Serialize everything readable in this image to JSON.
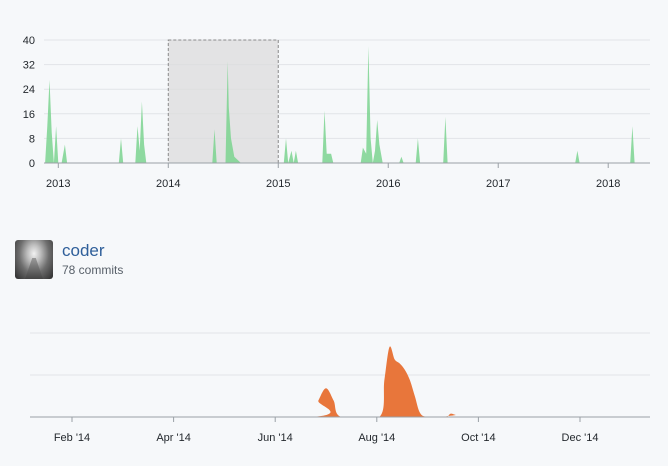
{
  "overview": {
    "chart_data": {
      "type": "area",
      "y_ticks": [
        "0",
        "8",
        "16",
        "24",
        "32",
        "40"
      ],
      "x_ticks": [
        "2013",
        "2014",
        "2015",
        "2016",
        "2017",
        "2018"
      ],
      "ylim": [
        0,
        40
      ],
      "xlim": [
        2012.87,
        2018.38
      ],
      "selection": [
        2014.0,
        2015.0
      ],
      "color": "#7bd38f",
      "x": [
        2012.88,
        2012.9,
        2012.92,
        2012.94,
        2012.96,
        2012.98,
        2013.0,
        2013.03,
        2013.06,
        2013.08,
        2013.1,
        2013.18,
        2013.2,
        2013.22,
        2013.55,
        2013.57,
        2013.59,
        2013.7,
        2013.72,
        2013.74,
        2013.76,
        2013.78,
        2013.8,
        2014.4,
        2014.42,
        2014.44,
        2014.52,
        2014.54,
        2014.55,
        2014.57,
        2014.6,
        2014.63,
        2014.66,
        2015.05,
        2015.07,
        2015.09,
        2015.12,
        2015.14,
        2015.16,
        2015.18,
        2015.2,
        2015.22,
        2015.4,
        2015.42,
        2015.44,
        2015.48,
        2015.5,
        2015.52,
        2015.75,
        2015.77,
        2015.8,
        2015.82,
        2015.84,
        2015.86,
        2015.88,
        2015.9,
        2015.92,
        2015.95,
        2016.1,
        2016.12,
        2016.14,
        2016.25,
        2016.27,
        2016.29,
        2016.5,
        2016.52,
        2016.54,
        2017.7,
        2017.72,
        2017.74,
        2018.2,
        2018.22,
        2018.24,
        2018.36
      ],
      "y": [
        0,
        12,
        27,
        10,
        0,
        12,
        0,
        0,
        6,
        0,
        0,
        0,
        0,
        0,
        0,
        8,
        0,
        0,
        12,
        4,
        20,
        6,
        0,
        0,
        11,
        0,
        0,
        33,
        18,
        8,
        2,
        1,
        0,
        0,
        8,
        0,
        4,
        0,
        4,
        0,
        0,
        0,
        0,
        17,
        3,
        3,
        0,
        0,
        0,
        5,
        3,
        38,
        8,
        0,
        4,
        14,
        6,
        0,
        0,
        2,
        0,
        0,
        8,
        0,
        0,
        15,
        0,
        0,
        4,
        0,
        0,
        12,
        0,
        0
      ]
    }
  },
  "contributor": {
    "name": "coder",
    "commits": "78 commits",
    "chart_data": {
      "type": "area",
      "x_ticks": [
        "Feb '14",
        "Apr '14",
        "Jun '14",
        "Aug '14",
        "Oct '14",
        "Dec '14"
      ],
      "color": "#e8763b",
      "x_months": [
        0.0,
        4.7,
        4.85,
        5.0,
        5.15,
        5.3,
        6.05,
        6.15,
        6.25,
        6.35,
        6.45,
        6.55,
        6.65,
        6.75,
        6.85,
        7.0,
        7.35,
        7.45,
        7.55,
        7.7,
        11.5
      ],
      "y": [
        0,
        0,
        0.4,
        0.7,
        0.4,
        0,
        0,
        0.9,
        1.7,
        1.4,
        1.3,
        1.15,
        0.9,
        0.5,
        0.1,
        0,
        0,
        0.08,
        0.05,
        0,
        0
      ]
    }
  }
}
